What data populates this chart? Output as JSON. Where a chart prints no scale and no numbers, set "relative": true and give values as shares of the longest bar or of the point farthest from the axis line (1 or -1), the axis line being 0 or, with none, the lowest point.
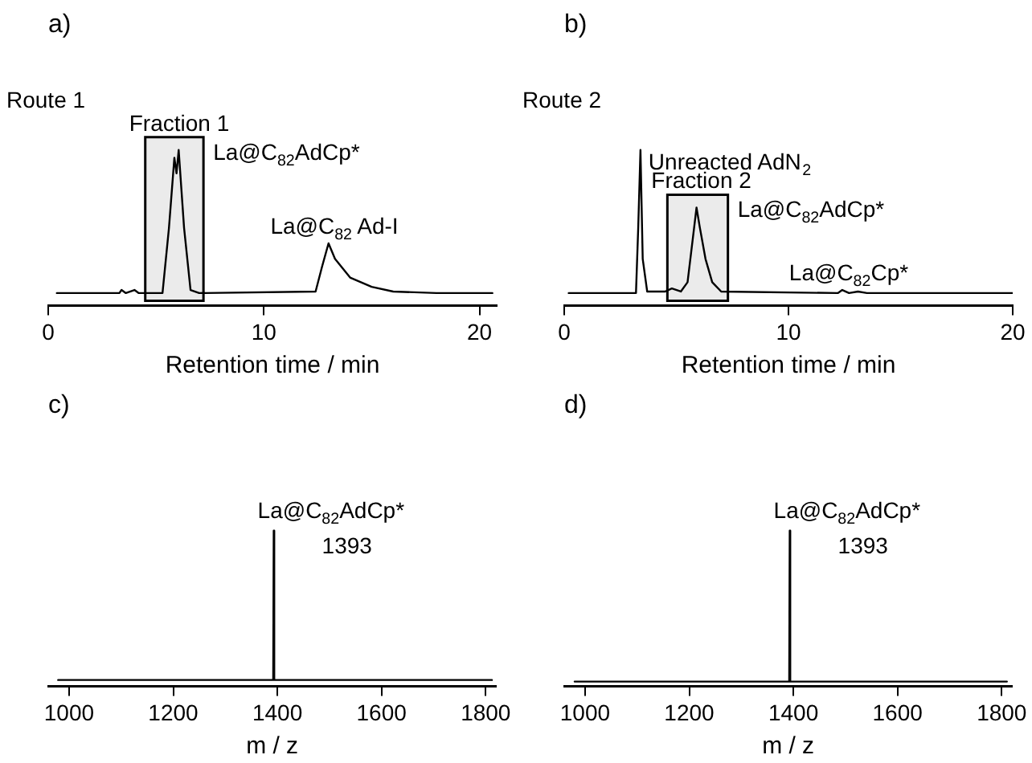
{
  "chart_data": [
    {
      "type": "line",
      "title": "a)",
      "xlabel": "Retention time / min",
      "relative": true,
      "xlim": [
        0,
        20.8
      ],
      "xticks": [
        0,
        10,
        20
      ],
      "grid": false,
      "legend": false,
      "marker": "none",
      "tick_labels": "x",
      "x": [
        0.4,
        3.3,
        3.4,
        3.6,
        4.0,
        4.2,
        5.3,
        5.6,
        5.85,
        5.95,
        6.05,
        6.3,
        6.6,
        7.0,
        12.4,
        12.7,
        13.0,
        13.3,
        14,
        15,
        16,
        18,
        20.6
      ],
      "series": [
        {
          "color": "#000000",
          "values": [
            0.08,
            0.08,
            0.1,
            0.08,
            0.1,
            0.08,
            0.08,
            0.5,
            0.95,
            0.85,
            1.0,
            0.5,
            0.1,
            0.08,
            0.09,
            0.25,
            0.4,
            0.3,
            0.18,
            0.12,
            0.09,
            0.08,
            0.08
          ]
        }
      ],
      "bands": [
        {
          "axis": "x",
          "from": 4.5,
          "to": 7.2,
          "label": "Fraction 1",
          "color": "#000000"
        }
      ],
      "annotations": [
        "Route 1",
        {
          "text": "La@C$_{82}$AdCp*",
          "x": 5.9,
          "y": 1.0
        },
        {
          "text": "La@C$_{82}$ Ad-I",
          "x": 13.0,
          "y": 0.4
        }
      ]
    },
    {
      "type": "line",
      "title": "b)",
      "xlabel": "Retention time / min",
      "relative": true,
      "xlim": [
        0,
        20
      ],
      "xticks": [
        0,
        10,
        20
      ],
      "grid": false,
      "legend": false,
      "marker": "none",
      "tick_labels": "x",
      "x": [
        0.2,
        3.2,
        3.3,
        3.4,
        3.5,
        3.7,
        4.5,
        4.8,
        5.2,
        5.5,
        5.75,
        5.9,
        6.05,
        6.3,
        6.6,
        7.0,
        12.2,
        12.4,
        12.7,
        13.1,
        13.5,
        20
      ],
      "series": [
        {
          "color": "#000000",
          "values": [
            0.08,
            0.08,
            0.5,
            1.0,
            0.3,
            0.09,
            0.09,
            0.11,
            0.09,
            0.15,
            0.45,
            0.63,
            0.5,
            0.3,
            0.15,
            0.09,
            0.08,
            0.1,
            0.08,
            0.09,
            0.08,
            0.08
          ]
        }
      ],
      "bands": [
        {
          "axis": "x",
          "from": 4.6,
          "to": 7.3,
          "label": "Fraction 2",
          "color": "#000000"
        }
      ],
      "annotations": [
        "Route 2",
        {
          "text": "Unreacted AdN$_{2}$",
          "x": 3.4,
          "y": 1.0
        },
        {
          "text": "La@C$_{82}$AdCp*",
          "x": 5.9,
          "y": 0.63
        },
        {
          "text": "La@C$_{82}$Cp*",
          "x": 12.4,
          "y": 0.1
        }
      ]
    },
    {
      "type": "line",
      "title": "c)",
      "xlabel": "m / z",
      "relative": true,
      "xlim": [
        960,
        1820
      ],
      "xticks": [
        1000,
        1200,
        1400,
        1600,
        1800
      ],
      "grid": false,
      "legend": false,
      "marker": "none",
      "tick_labels": "x",
      "x": [
        979,
        1392,
        1393,
        1394,
        1812
      ],
      "series": [
        {
          "color": "#000000",
          "values": [
            0.04,
            0.04,
            1.0,
            0.04,
            0.04
          ]
        }
      ],
      "annotations": [
        {
          "text": "La@C$_{82}$AdCp*",
          "x": 1393,
          "y": 1.0
        },
        {
          "text": "1393",
          "x": 1393,
          "y": 1.0
        }
      ]
    },
    {
      "type": "line",
      "title": "d)",
      "xlabel": "m / z",
      "relative": true,
      "xlim": [
        960,
        1820
      ],
      "xticks": [
        1000,
        1200,
        1400,
        1600,
        1800
      ],
      "grid": false,
      "legend": false,
      "marker": "none",
      "tick_labels": "x",
      "x": [
        980,
        1392,
        1393,
        1394,
        1810
      ],
      "series": [
        {
          "color": "#000000",
          "values": [
            0.03,
            0.03,
            1.0,
            0.03,
            0.03
          ]
        }
      ],
      "annotations": [
        {
          "text": "La@C$_{82}$AdCp*",
          "x": 1393,
          "y": 1.0
        },
        {
          "text": "1393",
          "x": 1393,
          "y": 1.0
        }
      ]
    }
  ]
}
